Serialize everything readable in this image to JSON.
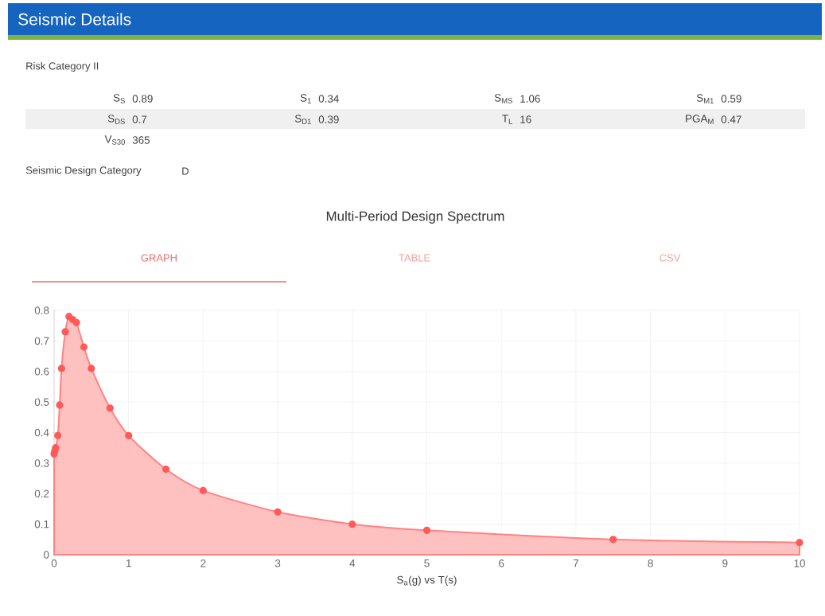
{
  "chart_data": [
    {
      "type": "other",
      "title": "Seismic Details",
      "annotations": [
        "Risk Category II",
        "S$_{S}$",
        "0.89",
        "S$_{1}$",
        "0.34",
        "S$_{MS}$",
        "1.06",
        "S$_{M1}$",
        "0.59",
        "S$_{DS}$",
        "0.7",
        "S$_{D1}$",
        "0.39",
        "T$_{L}$",
        "16",
        "PGA$_{M}$",
        "0.47",
        "V$_{S30}$",
        "365",
        "Seismic Design Category",
        "D"
      ]
    },
    {
      "type": "area",
      "title": "Multi-Period Design Spectrum",
      "xlabel": "S$_{a}$(g) vs T(s)",
      "annotations": [
        "GRAPH",
        "TABLE",
        "CSV"
      ],
      "x": [
        0,
        0.01,
        0.02,
        0.05,
        0.075,
        0.1,
        0.15,
        0.2,
        0.25,
        0.3,
        0.4,
        0.5,
        0.75,
        1,
        1.5,
        2,
        3,
        4,
        5,
        7.5,
        10
      ],
      "values": [
        0.33,
        0.34,
        0.35,
        0.39,
        0.49,
        0.61,
        0.73,
        0.78,
        0.77,
        0.76,
        0.68,
        0.61,
        0.48,
        0.39,
        0.28,
        0.21,
        0.14,
        0.1,
        0.08,
        0.05,
        0.04
      ],
      "color": "#ff5a5a",
      "xlim": [
        0,
        10
      ],
      "ylim": [
        0,
        0.8
      ],
      "xticks": [
        0,
        1,
        2,
        3,
        4,
        5,
        6,
        7,
        8,
        9,
        10
      ],
      "yticks": [
        0,
        0.1,
        0.2,
        0.3,
        0.4,
        0.5,
        0.6,
        0.7,
        0.8
      ],
      "grid": true,
      "marker": "circle",
      "line_style": "solid"
    }
  ]
}
